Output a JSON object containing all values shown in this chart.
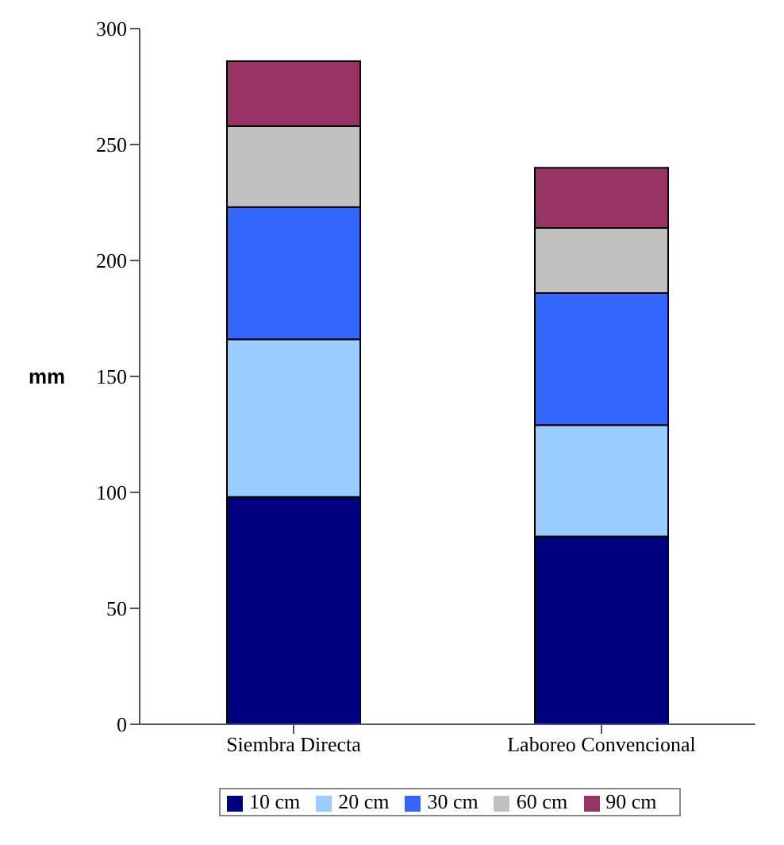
{
  "chart_data": {
    "type": "bar",
    "stacked": true,
    "ylabel": "mm",
    "categories": [
      "Siembra Directa",
      "Laboreo Convencional"
    ],
    "series": [
      {
        "name": "10 cm",
        "color": "#000080",
        "values": [
          98,
          81
        ]
      },
      {
        "name": "20 cm",
        "color": "#99ccff",
        "values": [
          68,
          48
        ]
      },
      {
        "name": "30 cm",
        "color": "#3366ff",
        "values": [
          57,
          57
        ]
      },
      {
        "name": "60 cm",
        "color": "#c0c0c0",
        "values": [
          35,
          28
        ]
      },
      {
        "name": "90 cm",
        "color": "#993366",
        "values": [
          28,
          26
        ]
      }
    ],
    "ylim": [
      0,
      300
    ],
    "yticks": [
      0,
      50,
      100,
      150,
      200,
      250,
      300
    ],
    "grid": false,
    "legend": "bottom"
  }
}
